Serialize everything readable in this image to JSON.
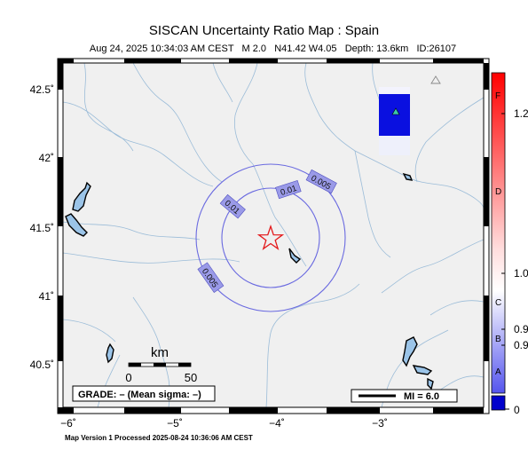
{
  "title": "SISCAN Uncertainty Ratio Map : Spain",
  "subtitle": {
    "date": "Aug 24, 2025 10:34:03 AM CEST",
    "magnitude": "M 2.0",
    "location": "N41.42 W4.05",
    "depth": "Depth: 13.6km",
    "id": "ID:26107"
  },
  "footer": "Map Version 1 Processed 2025-08-24 10:36:06 AM CEST",
  "axes": {
    "x_ticks": [
      {
        "value": -6,
        "label": "−6˚"
      },
      {
        "value": -5,
        "label": "−5˚"
      },
      {
        "value": -4,
        "label": "−4˚"
      },
      {
        "value": -3,
        "label": "−3˚"
      }
    ],
    "y_ticks": [
      {
        "value": 42.5,
        "label": "42.5˚"
      },
      {
        "value": 42,
        "label": "42˚"
      },
      {
        "value": 41.5,
        "label": "41.5˚"
      },
      {
        "value": 41,
        "label": "41˚"
      },
      {
        "value": 40.5,
        "label": "40.5˚"
      }
    ]
  },
  "contours": [
    {
      "label": "0.005"
    },
    {
      "label": "0.01"
    }
  ],
  "scale_bar": {
    "unit": "km",
    "start": "0",
    "end": "50"
  },
  "grade_box": "GRADE: – (Mean sigma: –)",
  "mi_legend": "MI = 6.0",
  "colorbar": {
    "letters": [
      "F",
      "D",
      "C",
      "B",
      "A"
    ],
    "values": [
      "1.2",
      "1.0",
      "0.9",
      "0.9",
      "0"
    ],
    "colors": {
      "top": "#ff0000",
      "mid": "#ffffff",
      "bottom": "#0000cc"
    }
  },
  "epicenter_color": "#e31a1c"
}
